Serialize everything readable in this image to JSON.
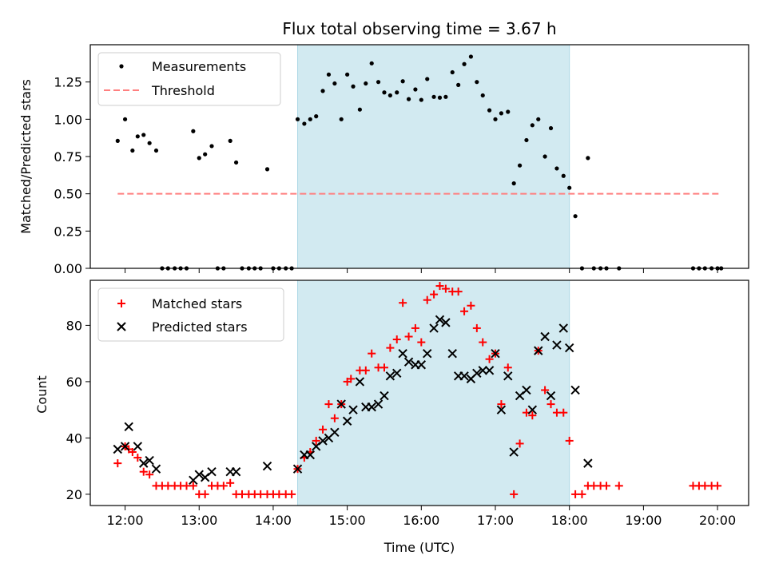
{
  "title": "Flux total observing time = 3.67 h",
  "xlabel": "Time (UTC)",
  "x_ticks": [
    "12:00",
    "13:00",
    "14:00",
    "15:00",
    "16:00",
    "17:00",
    "18:00",
    "19:00",
    "20:00"
  ],
  "colors": {
    "shade": "#add8e6",
    "threshold": "#ff7f7f",
    "measurement": "#000000",
    "matched": "#ff0000",
    "predicted": "#000000"
  },
  "chart_data": [
    {
      "type": "scatter",
      "ylabel": "Matched/Predicted stars",
      "ylim": [
        0,
        1.5
      ],
      "y_ticks": [
        "0.00",
        "0.25",
        "0.50",
        "0.75",
        "1.00",
        "1.25"
      ],
      "x_unit": "hours UTC",
      "xlim": [
        11.53,
        20.42
      ],
      "shaded_region": [
        14.33,
        18.0
      ],
      "legend": {
        "placement": "top-left",
        "entries": [
          "Measurements",
          "Threshold"
        ]
      },
      "threshold": {
        "name": "Threshold",
        "y": 0.5,
        "x_range": [
          11.9,
          20.05
        ]
      },
      "series": [
        {
          "name": "Measurements",
          "points": [
            [
              11.9,
              0.855
            ],
            [
              12.0,
              1.0
            ],
            [
              12.1,
              0.79
            ],
            [
              12.17,
              0.885
            ],
            [
              12.25,
              0.895
            ],
            [
              12.33,
              0.84
            ],
            [
              12.42,
              0.79
            ],
            [
              12.5,
              0.0
            ],
            [
              12.58,
              0.0
            ],
            [
              12.67,
              0.0
            ],
            [
              12.75,
              0.0
            ],
            [
              12.83,
              0.0
            ],
            [
              12.92,
              0.92
            ],
            [
              13.0,
              0.74
            ],
            [
              13.08,
              0.765
            ],
            [
              13.17,
              0.82
            ],
            [
              13.25,
              0.0
            ],
            [
              13.33,
              0.0
            ],
            [
              13.42,
              0.855
            ],
            [
              13.5,
              0.71
            ],
            [
              13.58,
              0.0
            ],
            [
              13.67,
              0.0
            ],
            [
              13.75,
              0.0
            ],
            [
              13.83,
              0.0
            ],
            [
              13.92,
              0.665
            ],
            [
              14.0,
              0.0
            ],
            [
              14.08,
              0.0
            ],
            [
              14.17,
              0.0
            ],
            [
              14.25,
              0.0
            ],
            [
              14.33,
              1.0
            ],
            [
              14.42,
              0.97
            ],
            [
              14.5,
              1.0
            ],
            [
              14.58,
              1.02
            ],
            [
              14.67,
              1.19
            ],
            [
              14.75,
              1.3
            ],
            [
              14.83,
              1.24
            ],
            [
              14.92,
              1.0
            ],
            [
              15.0,
              1.3
            ],
            [
              15.08,
              1.22
            ],
            [
              15.17,
              1.065
            ],
            [
              15.25,
              1.24
            ],
            [
              15.33,
              1.375
            ],
            [
              15.42,
              1.25
            ],
            [
              15.5,
              1.18
            ],
            [
              15.58,
              1.16
            ],
            [
              15.67,
              1.18
            ],
            [
              15.75,
              1.255
            ],
            [
              15.83,
              1.135
            ],
            [
              15.92,
              1.2
            ],
            [
              16.0,
              1.13
            ],
            [
              16.08,
              1.27
            ],
            [
              16.17,
              1.15
            ],
            [
              16.25,
              1.145
            ],
            [
              16.33,
              1.15
            ],
            [
              16.42,
              1.315
            ],
            [
              16.5,
              1.23
            ],
            [
              16.58,
              1.37
            ],
            [
              16.67,
              1.42
            ],
            [
              16.75,
              1.25
            ],
            [
              16.83,
              1.16
            ],
            [
              16.92,
              1.06
            ],
            [
              17.0,
              1.0
            ],
            [
              17.08,
              1.04
            ],
            [
              17.17,
              1.05
            ],
            [
              17.25,
              0.57
            ],
            [
              17.33,
              0.69
            ],
            [
              17.42,
              0.86
            ],
            [
              17.5,
              0.96
            ],
            [
              17.58,
              1.0
            ],
            [
              17.67,
              0.75
            ],
            [
              17.75,
              0.94
            ],
            [
              17.83,
              0.67
            ],
            [
              17.92,
              0.62
            ],
            [
              18.0,
              0.54
            ],
            [
              18.08,
              0.35
            ],
            [
              18.17,
              0.0
            ],
            [
              18.25,
              0.74
            ],
            [
              18.33,
              0.0
            ],
            [
              18.42,
              0.0
            ],
            [
              18.5,
              0.0
            ],
            [
              18.67,
              0.0
            ],
            [
              19.67,
              0.0
            ],
            [
              19.75,
              0.0
            ],
            [
              19.83,
              0.0
            ],
            [
              19.92,
              0.0
            ],
            [
              20.0,
              0.0
            ],
            [
              20.05,
              0.0
            ]
          ]
        }
      ]
    },
    {
      "type": "scatter",
      "ylabel": "Count",
      "ylim": [
        16,
        96
      ],
      "y_ticks": [
        "20",
        "40",
        "60",
        "80"
      ],
      "x_unit": "hours UTC",
      "xlim": [
        11.53,
        20.42
      ],
      "shaded_region": [
        14.33,
        18.0
      ],
      "legend": {
        "placement": "top-left",
        "entries": [
          "Matched stars",
          "Predicted stars"
        ]
      },
      "series": [
        {
          "name": "Matched stars",
          "marker": "plus",
          "points": [
            [
              11.9,
              31
            ],
            [
              12.0,
              37
            ],
            [
              12.05,
              36
            ],
            [
              12.1,
              35
            ],
            [
              12.17,
              33
            ],
            [
              12.25,
              28
            ],
            [
              12.33,
              27
            ],
            [
              12.42,
              23
            ],
            [
              12.5,
              23
            ],
            [
              12.58,
              23
            ],
            [
              12.67,
              23
            ],
            [
              12.75,
              23
            ],
            [
              12.83,
              23
            ],
            [
              12.92,
              23
            ],
            [
              13.0,
              20
            ],
            [
              13.08,
              20
            ],
            [
              13.17,
              23
            ],
            [
              13.25,
              23
            ],
            [
              13.33,
              23
            ],
            [
              13.42,
              24
            ],
            [
              13.5,
              20
            ],
            [
              13.58,
              20
            ],
            [
              13.67,
              20
            ],
            [
              13.75,
              20
            ],
            [
              13.83,
              20
            ],
            [
              13.92,
              20
            ],
            [
              14.0,
              20
            ],
            [
              14.08,
              20
            ],
            [
              14.17,
              20
            ],
            [
              14.25,
              20
            ],
            [
              14.33,
              29
            ],
            [
              14.42,
              33
            ],
            [
              14.5,
              35
            ],
            [
              14.58,
              39
            ],
            [
              14.67,
              43
            ],
            [
              14.75,
              52
            ],
            [
              14.83,
              47
            ],
            [
              14.92,
              52
            ],
            [
              15.0,
              60
            ],
            [
              15.05,
              61
            ],
            [
              15.17,
              64
            ],
            [
              15.25,
              64
            ],
            [
              15.33,
              70
            ],
            [
              15.42,
              65
            ],
            [
              15.5,
              65
            ],
            [
              15.58,
              72
            ],
            [
              15.67,
              75
            ],
            [
              15.75,
              88
            ],
            [
              15.83,
              76
            ],
            [
              15.92,
              79
            ],
            [
              16.0,
              74
            ],
            [
              16.08,
              89
            ],
            [
              16.17,
              91
            ],
            [
              16.25,
              94
            ],
            [
              16.33,
              93
            ],
            [
              16.42,
              92
            ],
            [
              16.5,
              92
            ],
            [
              16.58,
              85
            ],
            [
              16.67,
              87
            ],
            [
              16.75,
              79
            ],
            [
              16.83,
              74
            ],
            [
              16.92,
              68
            ],
            [
              17.0,
              70
            ],
            [
              17.08,
              52
            ],
            [
              17.17,
              65
            ],
            [
              17.25,
              20
            ],
            [
              17.33,
              38
            ],
            [
              17.42,
              49
            ],
            [
              17.5,
              48
            ],
            [
              17.58,
              71
            ],
            [
              17.67,
              57
            ],
            [
              17.75,
              52
            ],
            [
              17.83,
              49
            ],
            [
              17.92,
              49
            ],
            [
              18.0,
              39
            ],
            [
              18.08,
              20
            ],
            [
              18.17,
              20
            ],
            [
              18.25,
              23
            ],
            [
              18.33,
              23
            ],
            [
              18.42,
              23
            ],
            [
              18.5,
              23
            ],
            [
              18.67,
              23
            ],
            [
              19.67,
              23
            ],
            [
              19.75,
              23
            ],
            [
              19.83,
              23
            ],
            [
              19.92,
              23
            ],
            [
              20.0,
              23
            ]
          ]
        },
        {
          "name": "Predicted stars",
          "marker": "x",
          "points": [
            [
              11.9,
              36
            ],
            [
              12.0,
              37
            ],
            [
              12.05,
              44
            ],
            [
              12.17,
              37
            ],
            [
              12.25,
              31
            ],
            [
              12.33,
              32
            ],
            [
              12.42,
              29
            ],
            [
              12.92,
              25
            ],
            [
              13.0,
              27
            ],
            [
              13.08,
              26
            ],
            [
              13.17,
              28
            ],
            [
              13.42,
              28
            ],
            [
              13.5,
              28
            ],
            [
              13.92,
              30
            ],
            [
              14.33,
              29
            ],
            [
              14.42,
              34
            ],
            [
              14.5,
              34
            ],
            [
              14.58,
              37
            ],
            [
              14.67,
              39
            ],
            [
              14.75,
              40
            ],
            [
              14.83,
              42
            ],
            [
              14.92,
              52
            ],
            [
              15.0,
              46
            ],
            [
              15.08,
              50
            ],
            [
              15.17,
              60
            ],
            [
              15.25,
              51
            ],
            [
              15.33,
              51
            ],
            [
              15.42,
              52
            ],
            [
              15.5,
              55
            ],
            [
              15.58,
              62
            ],
            [
              15.67,
              63
            ],
            [
              15.75,
              70
            ],
            [
              15.83,
              67
            ],
            [
              15.92,
              66
            ],
            [
              16.0,
              66
            ],
            [
              16.08,
              70
            ],
            [
              16.17,
              79
            ],
            [
              16.25,
              82
            ],
            [
              16.33,
              81
            ],
            [
              16.42,
              70
            ],
            [
              16.5,
              62
            ],
            [
              16.58,
              62
            ],
            [
              16.67,
              61
            ],
            [
              16.75,
              63
            ],
            [
              16.83,
              64
            ],
            [
              16.92,
              64
            ],
            [
              17.0,
              70
            ],
            [
              17.08,
              50
            ],
            [
              17.17,
              62
            ],
            [
              17.25,
              35
            ],
            [
              17.33,
              55
            ],
            [
              17.42,
              57
            ],
            [
              17.5,
              50
            ],
            [
              17.58,
              71
            ],
            [
              17.67,
              76
            ],
            [
              17.75,
              55
            ],
            [
              17.83,
              73
            ],
            [
              17.92,
              79
            ],
            [
              18.0,
              72
            ],
            [
              18.08,
              57
            ],
            [
              18.25,
              31
            ]
          ]
        }
      ]
    }
  ]
}
